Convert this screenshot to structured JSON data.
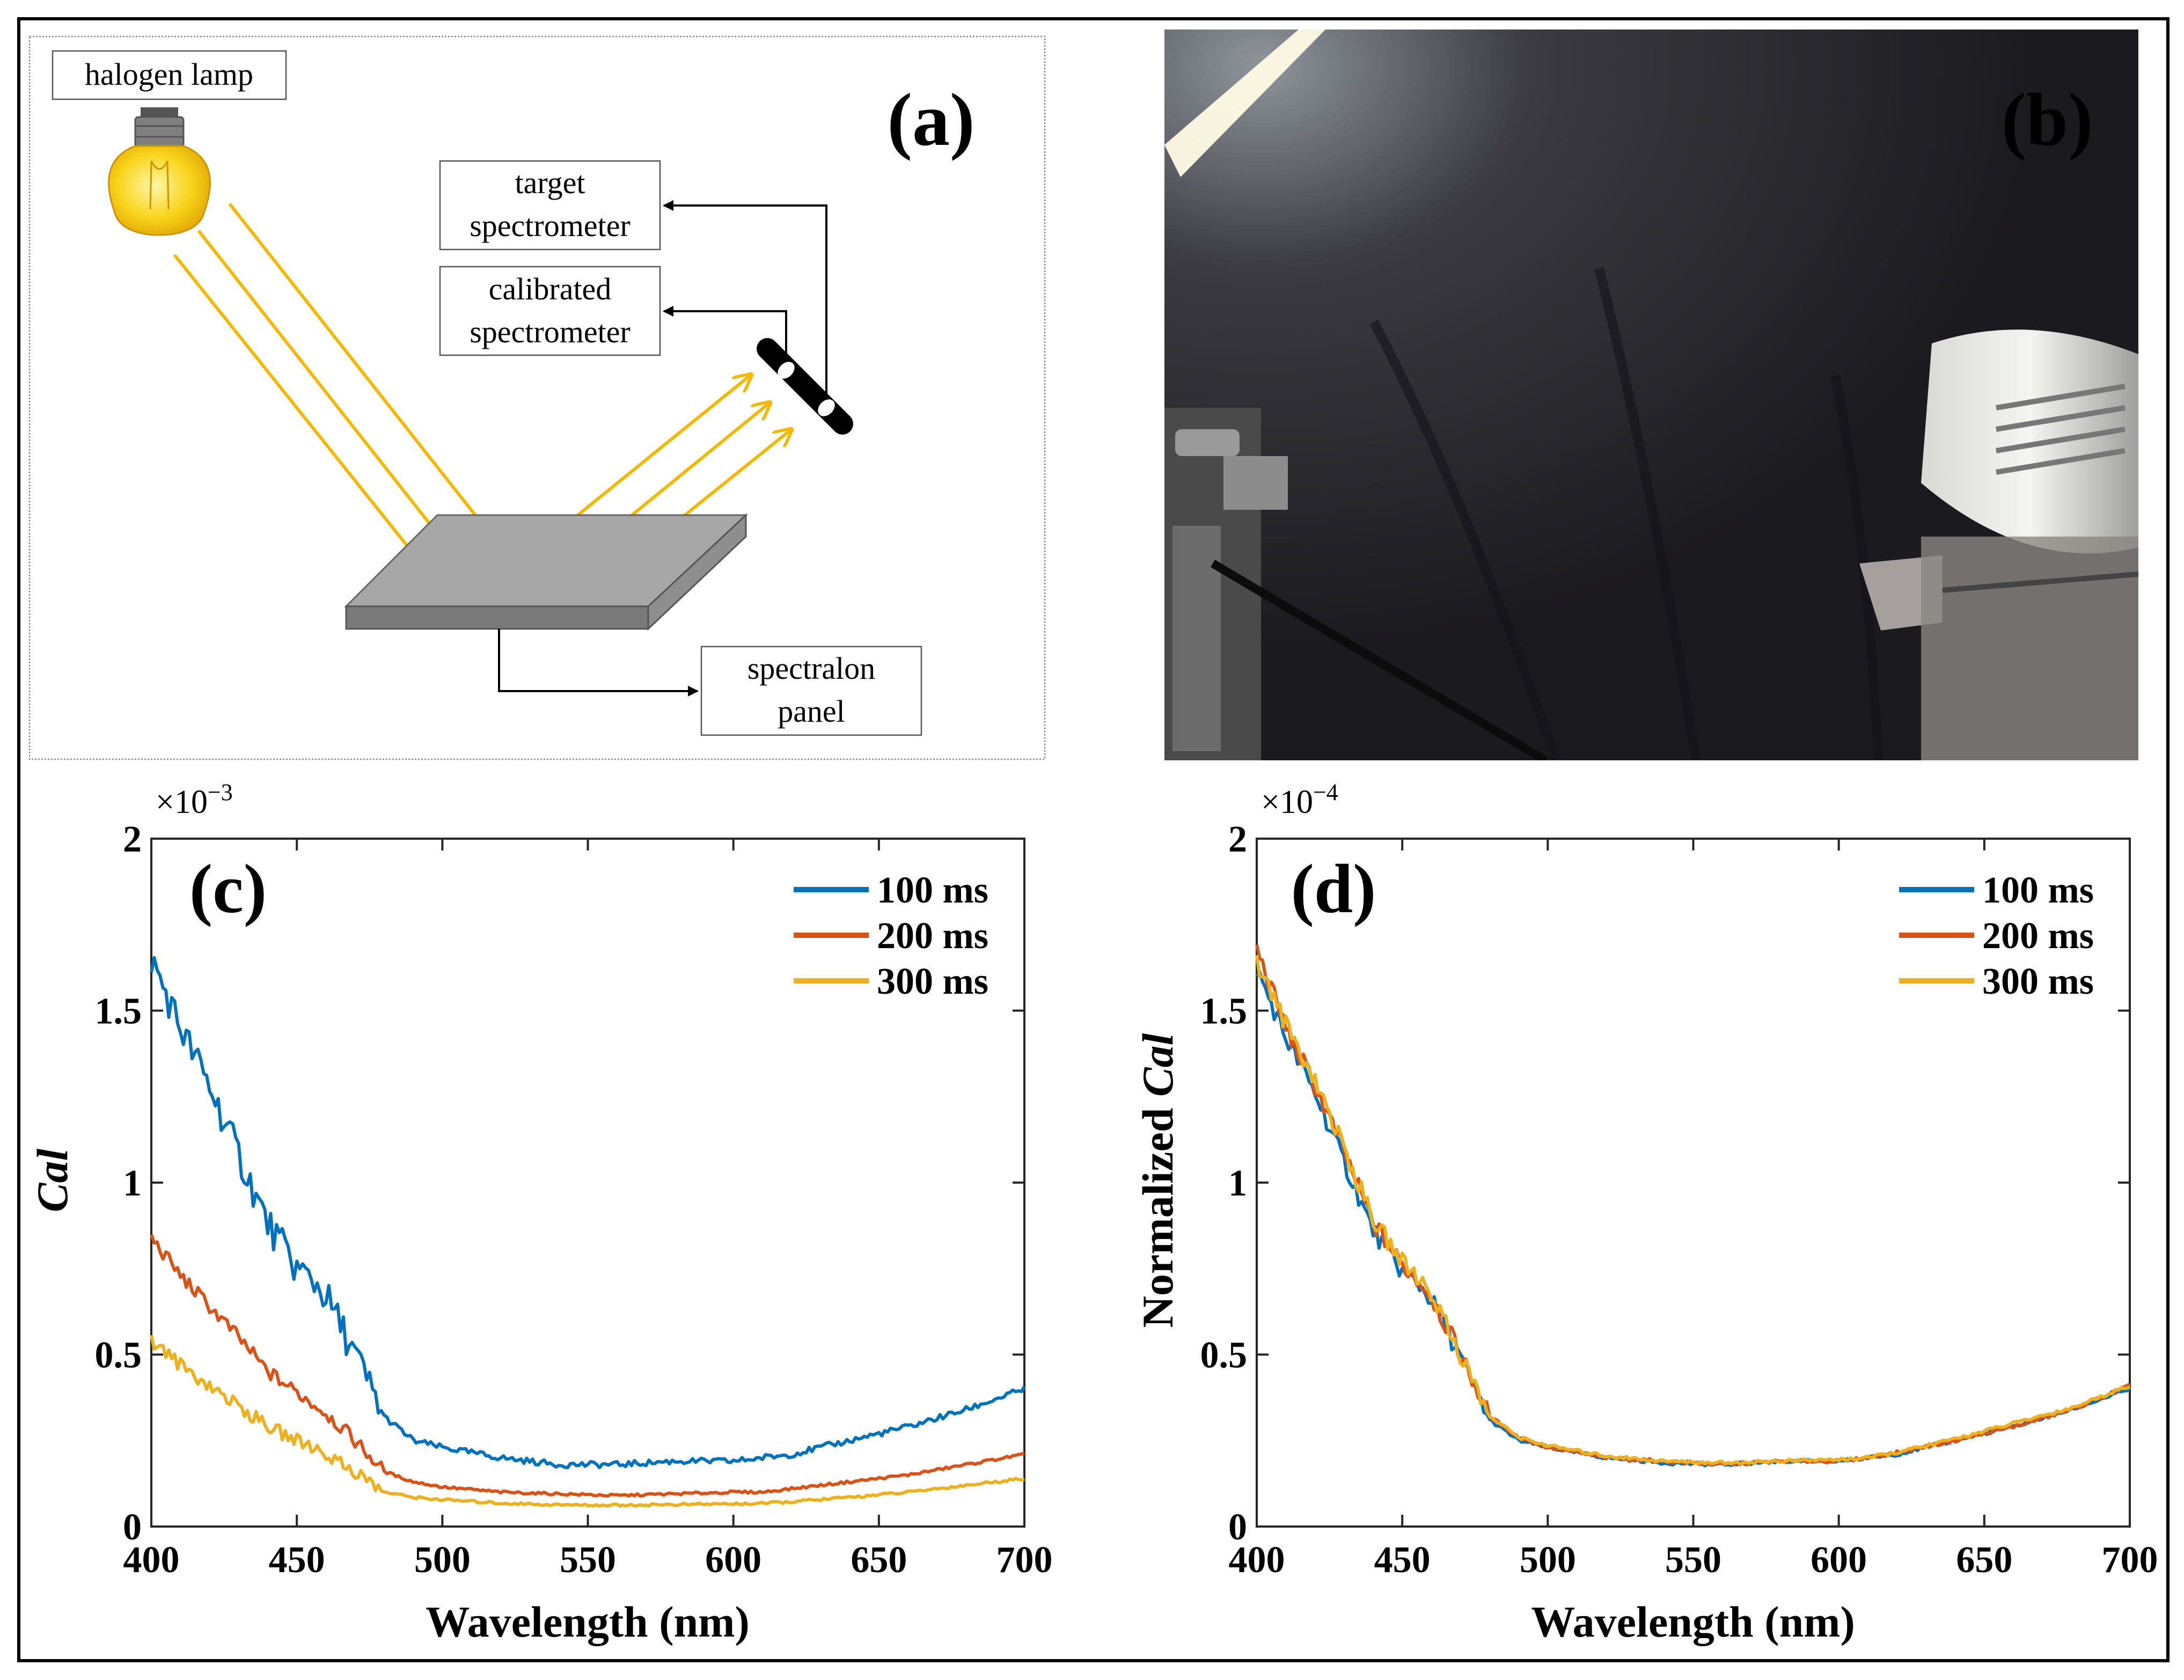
{
  "figure": {
    "panel_a": {
      "label": "(a)",
      "boxes": {
        "lamp": "halogen lamp",
        "target_line1": "target",
        "target_line2": "spectrometer",
        "calibrated_line1": "calibrated",
        "calibrated_line2": "spectrometer",
        "panel_line1": "spectralon",
        "panel_line2": "panel"
      }
    },
    "panel_b": {
      "label": "(b)"
    }
  },
  "chart_data": [
    {
      "type": "line",
      "panel_label": "(c)",
      "xlabel": "Wavelength (nm)",
      "ylabel": "Cal",
      "y_multiplier": "×10",
      "y_exponent": "−3",
      "xlim": [
        400,
        700
      ],
      "ylim": [
        0,
        2
      ],
      "xticks": [
        "400",
        "450",
        "500",
        "550",
        "600",
        "650",
        "700"
      ],
      "yticks": [
        "0",
        "0.5",
        "1",
        "1.5",
        "2"
      ],
      "legend_position": "top-right",
      "x": [
        400,
        410,
        420,
        430,
        440,
        450,
        455,
        460,
        470,
        480,
        490,
        500,
        520,
        540,
        560,
        580,
        600,
        610,
        620,
        640,
        660,
        680,
        700
      ],
      "series": [
        {
          "name": "100 ms",
          "color": "#0072BD",
          "values": [
            1.65,
            1.45,
            1.28,
            1.08,
            0.88,
            0.75,
            0.72,
            0.67,
            0.5,
            0.32,
            0.25,
            0.23,
            0.2,
            0.18,
            0.18,
            0.19,
            0.19,
            0.2,
            0.21,
            0.25,
            0.29,
            0.34,
            0.4
          ]
        },
        {
          "name": "200 ms",
          "color": "#D95319",
          "values": [
            0.84,
            0.73,
            0.64,
            0.55,
            0.45,
            0.39,
            0.36,
            0.33,
            0.25,
            0.16,
            0.13,
            0.115,
            0.1,
            0.095,
            0.09,
            0.095,
            0.1,
            0.1,
            0.11,
            0.13,
            0.15,
            0.18,
            0.21
          ]
        },
        {
          "name": "300 ms",
          "color": "#EDB120",
          "values": [
            0.54,
            0.47,
            0.41,
            0.35,
            0.29,
            0.25,
            0.235,
            0.21,
            0.16,
            0.1,
            0.085,
            0.078,
            0.068,
            0.063,
            0.062,
            0.064,
            0.066,
            0.067,
            0.072,
            0.085,
            0.1,
            0.12,
            0.14
          ]
        }
      ]
    },
    {
      "type": "line",
      "panel_label": "(d)",
      "xlabel": "Wavelength (nm)",
      "ylabel": "Normalized Cal",
      "ylabel_plain": "Normalized",
      "ylabel_italic": "Cal",
      "y_multiplier": "×10",
      "y_exponent": "−4",
      "xlim": [
        400,
        700
      ],
      "ylim": [
        0,
        2
      ],
      "xticks": [
        "400",
        "450",
        "500",
        "550",
        "600",
        "650",
        "700"
      ],
      "yticks": [
        "0",
        "0.5",
        "1",
        "1.5",
        "2"
      ],
      "legend_position": "top-right",
      "x": [
        400,
        410,
        420,
        430,
        440,
        450,
        455,
        460,
        470,
        480,
        490,
        500,
        520,
        540,
        560,
        580,
        600,
        610,
        620,
        640,
        660,
        680,
        700
      ],
      "series": [
        {
          "name": "100 ms",
          "color": "#0072BD",
          "values": [
            1.62,
            1.42,
            1.26,
            1.06,
            0.86,
            0.74,
            0.71,
            0.66,
            0.49,
            0.31,
            0.25,
            0.23,
            0.2,
            0.185,
            0.18,
            0.19,
            0.19,
            0.2,
            0.21,
            0.25,
            0.29,
            0.34,
            0.4
          ]
        },
        {
          "name": "200 ms",
          "color": "#D95319",
          "values": [
            1.68,
            1.45,
            1.28,
            1.09,
            0.88,
            0.76,
            0.72,
            0.67,
            0.5,
            0.32,
            0.26,
            0.23,
            0.2,
            0.19,
            0.18,
            0.19,
            0.19,
            0.2,
            0.215,
            0.25,
            0.29,
            0.34,
            0.41
          ]
        },
        {
          "name": "300 ms",
          "color": "#EDB120",
          "values": [
            1.64,
            1.46,
            1.3,
            1.1,
            0.89,
            0.77,
            0.73,
            0.68,
            0.5,
            0.32,
            0.26,
            0.235,
            0.205,
            0.19,
            0.185,
            0.19,
            0.195,
            0.2,
            0.215,
            0.255,
            0.3,
            0.345,
            0.41
          ]
        }
      ]
    }
  ]
}
